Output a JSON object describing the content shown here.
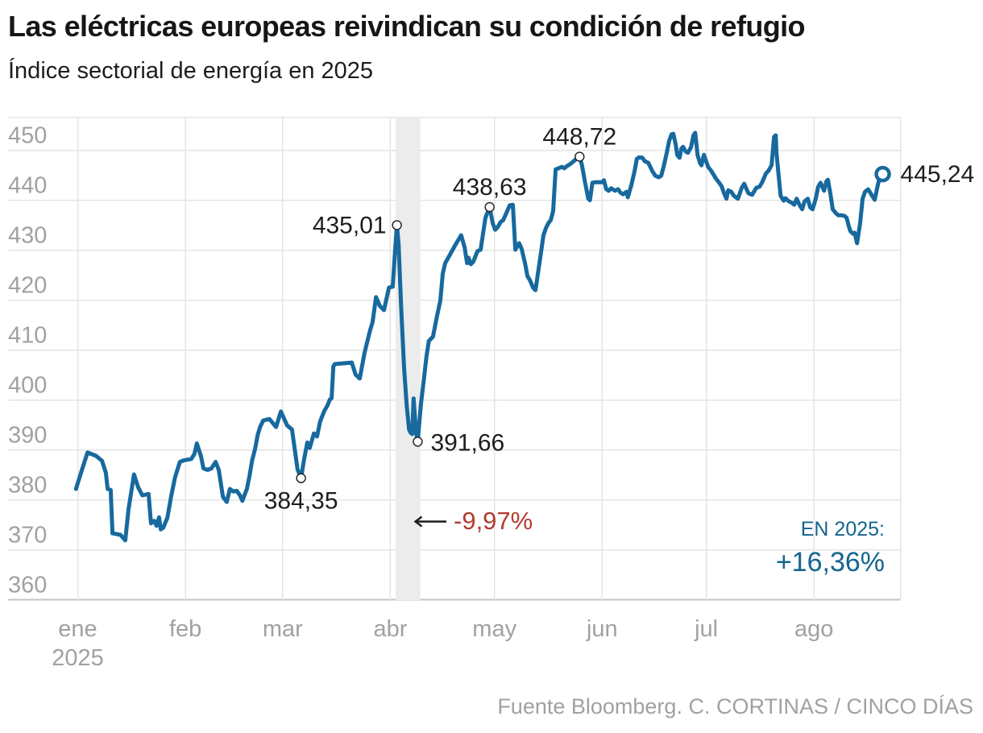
{
  "header": {
    "title": "Las eléctricas europeas reivindican su condición de refugio",
    "subtitle": "Índice sectorial de energía en 2025"
  },
  "annotations": {
    "crash": {
      "text": "-9,97%",
      "color": "#b23b2e",
      "arrow": "left-arrow"
    },
    "ytd_label": "EN 2025:",
    "ytd_value": "+16,36%",
    "ytd_color": "#14658f"
  },
  "footer": {
    "credit": "Fuente Bloomberg. C. CORTINAS / CINCO DÍAS"
  },
  "chart_data": {
    "type": "line",
    "title": "Índice sectorial de energía en 2025",
    "line_color": "#17699e",
    "grid": true,
    "x_axis": {
      "unit": "day of 2025",
      "ticks": [
        {
          "label": "ene",
          "day": 1,
          "sublabel": "2025"
        },
        {
          "label": "feb",
          "day": 32
        },
        {
          "label": "mar",
          "day": 60
        },
        {
          "label": "abr",
          "day": 91
        },
        {
          "label": "may",
          "day": 121
        },
        {
          "label": "jun",
          "day": 152
        },
        {
          "label": "jul",
          "day": 182
        },
        {
          "label": "ago",
          "day": 213
        }
      ],
      "right_edge_day": 238
    },
    "y_axis": {
      "ticks": [
        450,
        440,
        430,
        420,
        410,
        400,
        390,
        380,
        370,
        360
      ],
      "range": [
        359,
        457
      ]
    },
    "highlight_band": {
      "from_day": 92.5,
      "to_day": 99.7,
      "color": "#ececec"
    },
    "callouts": [
      {
        "day": 65.3,
        "value": 384.35,
        "label": "384,35",
        "position": "below"
      },
      {
        "day": 92.9,
        "value": 435.01,
        "label": "435,01",
        "position": "left"
      },
      {
        "day": 98.9,
        "value": 391.66,
        "label": "391,66",
        "position": "right"
      },
      {
        "day": 119.6,
        "value": 438.63,
        "label": "438,63",
        "position": "above"
      },
      {
        "day": 145.5,
        "value": 448.72,
        "label": "448,72",
        "position": "above"
      },
      {
        "day": 232.8,
        "value": 445.24,
        "label": "445,24",
        "position": "end"
      }
    ],
    "series": [
      {
        "name": "Índice sectorial de energía 2025",
        "points": [
          [
            0.5,
            382.2
          ],
          [
            1.7,
            384.9
          ],
          [
            3.8,
            389.5
          ],
          [
            6.3,
            388.8
          ],
          [
            8,
            387.8
          ],
          [
            9.1,
            385.4
          ],
          [
            9.6,
            382.2
          ],
          [
            10.5,
            382
          ],
          [
            11,
            373.3
          ],
          [
            13.3,
            373
          ],
          [
            14.7,
            371.9
          ],
          [
            15.6,
            378
          ],
          [
            17.2,
            385.1
          ],
          [
            18.4,
            382.5
          ],
          [
            19.6,
            380.9
          ],
          [
            21.4,
            381.2
          ],
          [
            22.1,
            375.3
          ],
          [
            23,
            375.8
          ],
          [
            23.7,
            374.8
          ],
          [
            24.4,
            376.5
          ],
          [
            24.9,
            374.1
          ],
          [
            25.6,
            374.4
          ],
          [
            26.8,
            376.4
          ],
          [
            27.9,
            380.7
          ],
          [
            29,
            384.5
          ],
          [
            30.4,
            387.6
          ],
          [
            31.5,
            387.9
          ],
          [
            33.7,
            388.2
          ],
          [
            34.6,
            389.2
          ],
          [
            35.3,
            391.3
          ],
          [
            36.5,
            388.7
          ],
          [
            37.2,
            386.3
          ],
          [
            38.4,
            386
          ],
          [
            39.5,
            386.3
          ],
          [
            40.7,
            387.6
          ],
          [
            41.6,
            386
          ],
          [
            42.8,
            380.6
          ],
          [
            43.9,
            379.6
          ],
          [
            44.8,
            382.2
          ],
          [
            45.8,
            381.7
          ],
          [
            46.8,
            381.8
          ],
          [
            47.8,
            380.8
          ],
          [
            48.4,
            379.8
          ],
          [
            49.7,
            382.2
          ],
          [
            50.5,
            384.9
          ],
          [
            51.2,
            387.9
          ],
          [
            52.1,
            390.3
          ],
          [
            52.8,
            393
          ],
          [
            53.5,
            394.6
          ],
          [
            54.4,
            395.9
          ],
          [
            56.2,
            396.2
          ],
          [
            58.1,
            394.6
          ],
          [
            59.5,
            397.7
          ],
          [
            61.3,
            394.9
          ],
          [
            62.7,
            394.1
          ],
          [
            64.3,
            386.1
          ],
          [
            65.3,
            384.35
          ],
          [
            66.2,
            388.2
          ],
          [
            67.1,
            391.5
          ],
          [
            67.8,
            390.4
          ],
          [
            69,
            393.3
          ],
          [
            69.9,
            392.7
          ],
          [
            70.8,
            395.7
          ],
          [
            72,
            397.8
          ],
          [
            72.9,
            398.9
          ],
          [
            73.6,
            400.1
          ],
          [
            74.1,
            400.4
          ],
          [
            74.6,
            406.7
          ],
          [
            75,
            407.2
          ],
          [
            79.9,
            407.5
          ],
          [
            81,
            405.1
          ],
          [
            82.2,
            404.3
          ],
          [
            83.6,
            409.5
          ],
          [
            85.2,
            414
          ],
          [
            85.9,
            415.6
          ],
          [
            86.9,
            420.6
          ],
          [
            88,
            418.8
          ],
          [
            89.2,
            418
          ],
          [
            90.6,
            422.5
          ],
          [
            91.7,
            422.7
          ],
          [
            92.4,
            430.1
          ],
          [
            92.9,
            435.01
          ],
          [
            93.4,
            431.2
          ],
          [
            94.1,
            418.8
          ],
          [
            95,
            406.2
          ],
          [
            95.7,
            399
          ],
          [
            96.4,
            394.1
          ],
          [
            96.8,
            393.5
          ],
          [
            97.3,
            393.2
          ],
          [
            97.7,
            400.3
          ],
          [
            98.4,
            393.5
          ],
          [
            98.9,
            391.66
          ],
          [
            99.8,
            399
          ],
          [
            100.7,
            404.3
          ],
          [
            101.4,
            408.6
          ],
          [
            102.1,
            411.8
          ],
          [
            103.3,
            412.7
          ],
          [
            104.4,
            416.7
          ],
          [
            105.4,
            419.9
          ],
          [
            106.1,
            425.3
          ],
          [
            106.8,
            427.4
          ],
          [
            107.7,
            428.5
          ],
          [
            109.6,
            430.9
          ],
          [
            111.4,
            433
          ],
          [
            112.4,
            430.6
          ],
          [
            113.1,
            427.4
          ],
          [
            113.5,
            428.5
          ],
          [
            114.2,
            427.2
          ],
          [
            114.9,
            427.7
          ],
          [
            116.1,
            429.8
          ],
          [
            117,
            430.1
          ],
          [
            118.4,
            436.5
          ],
          [
            119.6,
            438.63
          ],
          [
            120.5,
            435.4
          ],
          [
            121.2,
            434.1
          ],
          [
            121.9,
            434.6
          ],
          [
            122.8,
            435.7
          ],
          [
            123.5,
            436
          ],
          [
            125.4,
            439
          ],
          [
            126.3,
            439.1
          ],
          [
            127,
            430.1
          ],
          [
            128.1,
            431.4
          ],
          [
            128.8,
            430.3
          ],
          [
            129.8,
            427.4
          ],
          [
            130.5,
            424.8
          ],
          [
            131.2,
            424
          ],
          [
            132.1,
            422.5
          ],
          [
            132.8,
            422
          ],
          [
            133.5,
            425.3
          ],
          [
            134.4,
            429.6
          ],
          [
            135.1,
            433
          ],
          [
            135.8,
            434.4
          ],
          [
            136.5,
            435.4
          ],
          [
            137.2,
            436
          ],
          [
            137.9,
            437.8
          ],
          [
            138.6,
            446.2
          ],
          [
            139.5,
            446.4
          ],
          [
            140.4,
            446.7
          ],
          [
            141.1,
            446.4
          ],
          [
            141.8,
            446.8
          ],
          [
            142.7,
            447.2
          ],
          [
            143.6,
            447.7
          ],
          [
            144.6,
            448.3
          ],
          [
            145.5,
            448.72
          ],
          [
            146.2,
            447
          ],
          [
            147.1,
            443.5
          ],
          [
            148,
            440.3
          ],
          [
            148.5,
            440
          ],
          [
            149.2,
            443.5
          ],
          [
            149.9,
            443.6
          ],
          [
            152,
            443.6
          ],
          [
            152.5,
            444
          ],
          [
            153.2,
            442.2
          ],
          [
            153.9,
            441.9
          ],
          [
            154.6,
            442.4
          ],
          [
            155.7,
            441.9
          ],
          [
            156.6,
            442.2
          ],
          [
            157.3,
            441.5
          ],
          [
            158,
            441.2
          ],
          [
            159,
            441.7
          ],
          [
            159.4,
            440.6
          ],
          [
            160.4,
            443
          ],
          [
            161.3,
            445.7
          ],
          [
            162,
            448.3
          ],
          [
            162.7,
            448.6
          ],
          [
            163.6,
            448.5
          ],
          [
            164.3,
            447.8
          ],
          [
            165.3,
            447.5
          ],
          [
            166.4,
            445.9
          ],
          [
            167.3,
            444.9
          ],
          [
            168.3,
            444.6
          ],
          [
            169,
            444.9
          ],
          [
            169.7,
            446.7
          ],
          [
            170.6,
            449.5
          ],
          [
            171.3,
            451.9
          ],
          [
            172,
            453.2
          ],
          [
            172.5,
            453.3
          ],
          [
            173.2,
            451.1
          ],
          [
            173.6,
            449.1
          ],
          [
            174.3,
            448.5
          ],
          [
            174.8,
            450.3
          ],
          [
            175.3,
            450.7
          ],
          [
            176,
            449.8
          ],
          [
            176.7,
            449.5
          ],
          [
            177.6,
            450.6
          ],
          [
            178.3,
            453
          ],
          [
            178.8,
            453.5
          ],
          [
            179.5,
            449
          ],
          [
            180.2,
            447.4
          ],
          [
            180.6,
            447
          ],
          [
            181.3,
            449.1
          ],
          [
            182.5,
            446.7
          ],
          [
            183.4,
            445.9
          ],
          [
            184.1,
            445.1
          ],
          [
            184.8,
            444.3
          ],
          [
            185.7,
            443.5
          ],
          [
            186.4,
            442.8
          ],
          [
            187.1,
            441.4
          ],
          [
            187.8,
            440.3
          ],
          [
            188.3,
            442
          ],
          [
            189.2,
            441.7
          ],
          [
            189.9,
            440.9
          ],
          [
            191.1,
            440.3
          ],
          [
            192.2,
            442.5
          ],
          [
            192.9,
            443.3
          ],
          [
            194.1,
            441.4
          ],
          [
            195.2,
            441.1
          ],
          [
            196.4,
            442.5
          ],
          [
            197.3,
            442.7
          ],
          [
            198,
            443.5
          ],
          [
            199.2,
            445.4
          ],
          [
            199.9,
            445.9
          ],
          [
            200.8,
            447
          ],
          [
            201.5,
            452.7
          ],
          [
            202,
            453
          ],
          [
            202.2,
            449.5
          ],
          [
            202.7,
            445.9
          ],
          [
            203.4,
            440.9
          ],
          [
            204.3,
            439.9
          ],
          [
            204.8,
            440.4
          ],
          [
            205.7,
            439.8
          ],
          [
            206.6,
            439.5
          ],
          [
            207.3,
            439.1
          ],
          [
            208,
            440.3
          ],
          [
            208.9,
            439
          ],
          [
            209.6,
            438.2
          ],
          [
            210.3,
            439.8
          ],
          [
            211.2,
            440.3
          ],
          [
            211.9,
            438.6
          ],
          [
            212.6,
            438.2
          ],
          [
            213.5,
            440.3
          ],
          [
            214.2,
            442.7
          ],
          [
            214.9,
            443.5
          ],
          [
            215.9,
            441.9
          ],
          [
            216.6,
            443.8
          ],
          [
            217,
            444.1
          ],
          [
            217.7,
            441.4
          ],
          [
            218.4,
            438.2
          ],
          [
            219.3,
            437.4
          ],
          [
            220,
            437
          ],
          [
            220.7,
            437
          ],
          [
            221.7,
            436.9
          ],
          [
            222.4,
            436.5
          ],
          [
            223.1,
            434.6
          ],
          [
            223.5,
            433.8
          ],
          [
            224.2,
            433.3
          ],
          [
            224.7,
            433.5
          ],
          [
            225.4,
            431.4
          ],
          [
            226.3,
            435.4
          ],
          [
            227,
            440.3
          ],
          [
            227.7,
            441.7
          ],
          [
            228.6,
            442.2
          ],
          [
            229.3,
            441.4
          ],
          [
            230,
            440.6
          ],
          [
            230.5,
            440.1
          ],
          [
            231.2,
            442.5
          ],
          [
            232.1,
            445.2
          ],
          [
            232.8,
            445.24
          ]
        ]
      }
    ]
  }
}
